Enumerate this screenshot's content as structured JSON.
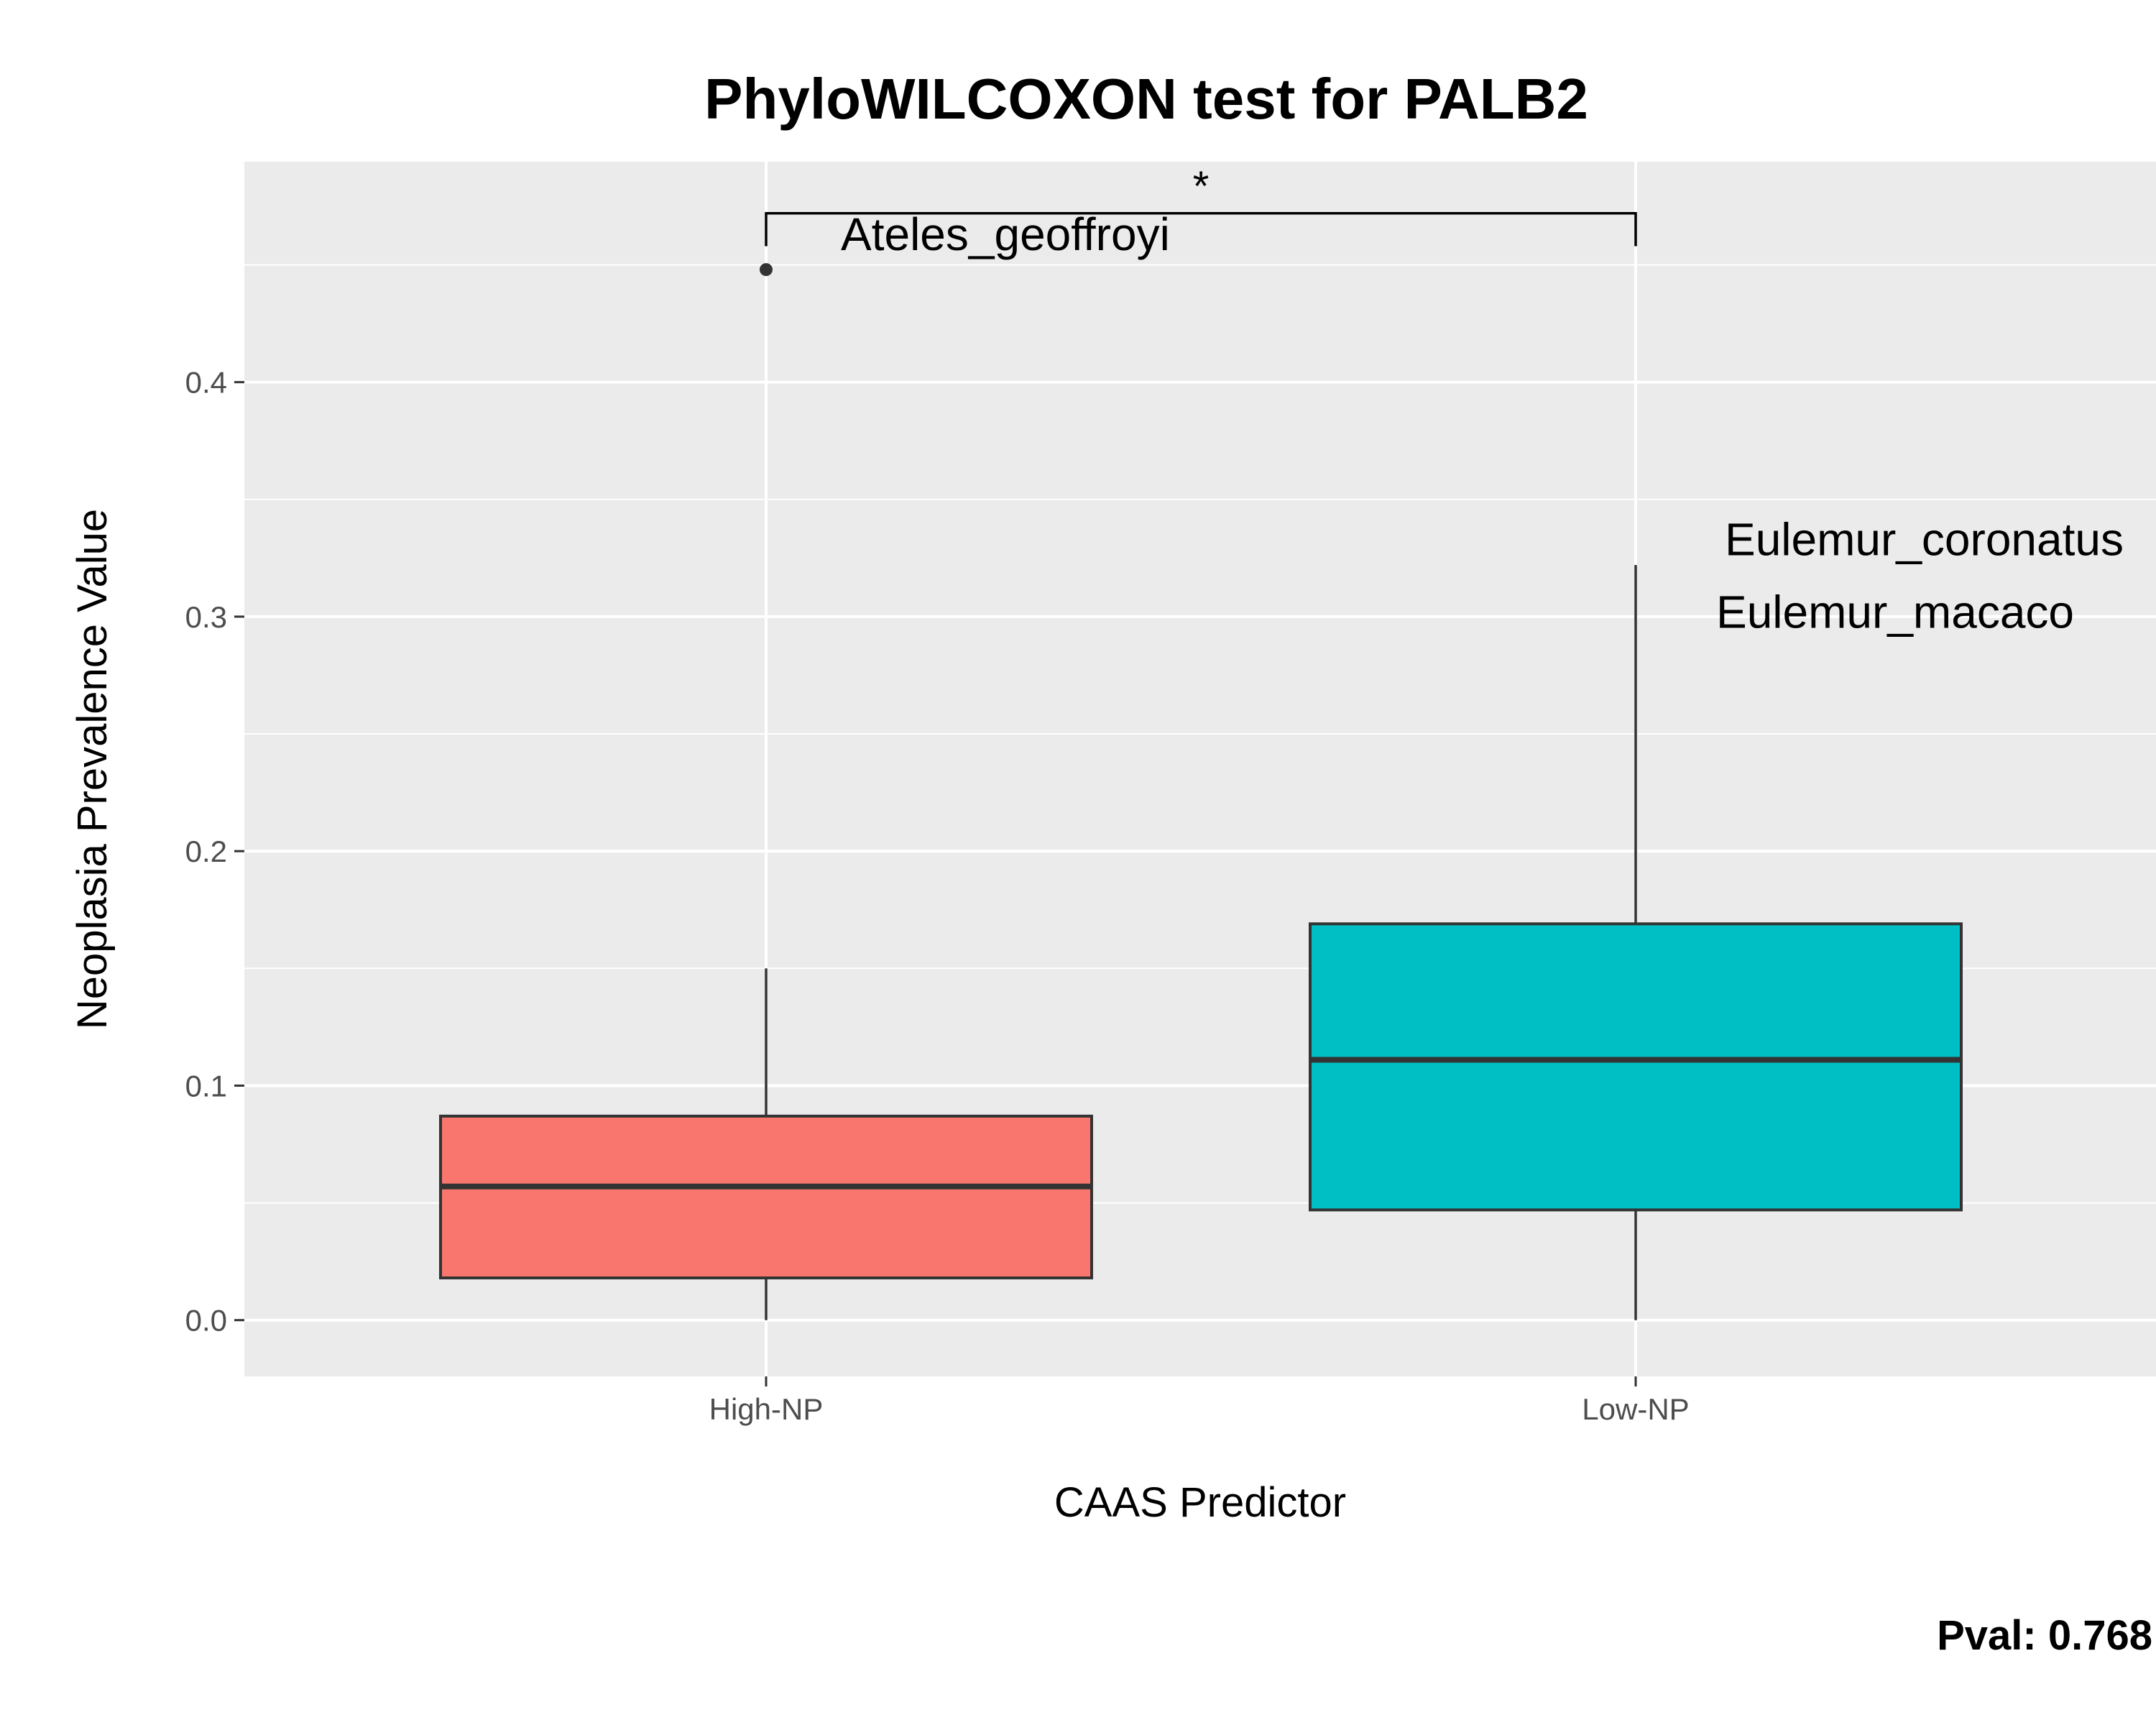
{
  "chart_data": {
    "type": "boxplot",
    "title": "PhyloWILCOXON test for PALB2",
    "xlabel": "CAAS Predictor",
    "ylabel": "Neoplasia Prevalence Value",
    "ylim": [
      -0.024,
      0.494
    ],
    "yticks": [
      0.0,
      0.1,
      0.2,
      0.3,
      0.4
    ],
    "ytick_labels": [
      "0.0",
      "0.1",
      "0.2",
      "0.3",
      "0.4"
    ],
    "grid": true,
    "legend": "none",
    "categories": [
      "High-NP",
      "Low-NP"
    ],
    "boxes": [
      {
        "category": "High-NP",
        "fill": "#F8766D",
        "min": 0.0,
        "q1": 0.018,
        "median": 0.057,
        "q3": 0.087,
        "max": 0.15,
        "outliers": [
          0.448
        ]
      },
      {
        "category": "Low-NP",
        "fill": "#00BFC4",
        "min": 0.0,
        "q1": 0.047,
        "median": 0.111,
        "q3": 0.169,
        "max": 0.322,
        "outliers": []
      }
    ],
    "annotations": [
      {
        "text": "Ateles_geoffroyi",
        "category": "High-NP",
        "y": 0.463
      },
      {
        "text": "Eulemur_coronatus",
        "category": "Low-NP",
        "y": 0.333
      },
      {
        "text": "Eulemur_macaco",
        "category": "Low-NP",
        "y": 0.302
      }
    ],
    "significance": {
      "label": "*",
      "from": "High-NP",
      "to": "Low-NP",
      "y": 0.472,
      "tip_low": 0.458
    },
    "pval_label": "Pval:  0.768"
  }
}
